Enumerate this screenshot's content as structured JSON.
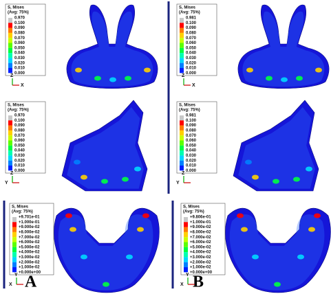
{
  "panels": [
    {
      "legend": {
        "title": "S, Mises",
        "subtitle": "(Avg: 75%)",
        "labels": [
          "0.970",
          "0.100",
          "0.090",
          "0.080",
          "0.070",
          "0.060",
          "0.050",
          "0.040",
          "0.030",
          "0.020",
          "0.010",
          "0.000"
        ]
      },
      "triad": [
        "Z",
        "X"
      ]
    },
    {
      "legend": {
        "title": "S, Mises",
        "subtitle": "(Avg: 75%)",
        "labels": [
          "0.981",
          "0.100",
          "0.090",
          "0.080",
          "0.070",
          "0.060",
          "0.050",
          "0.040",
          "0.030",
          "0.020",
          "0.010",
          "0.000"
        ]
      },
      "triad": [
        "Z",
        "X"
      ]
    },
    {
      "legend": {
        "title": "S, Mises",
        "subtitle": "(Avg: 75%)",
        "labels": [
          "0.970",
          "0.100",
          "0.090",
          "0.080",
          "0.070",
          "0.060",
          "0.050",
          "0.040",
          "0.030",
          "0.020",
          "0.010",
          "0.000"
        ]
      },
      "triad": [
        "Z",
        "Y"
      ]
    },
    {
      "legend": {
        "title": "S, Mises",
        "subtitle": "(Avg: 75%)",
        "labels": [
          "0.981",
          "0.100",
          "0.090",
          "0.080",
          "0.070",
          "0.060",
          "0.050",
          "0.040",
          "0.030",
          "0.020",
          "0.010",
          "0.000"
        ]
      },
      "triad": [
        "Z",
        "Y"
      ]
    },
    {
      "legend": {
        "title": "S, Mises",
        "subtitle": "(Avg: 75%)",
        "labels": [
          "+9.701e-01",
          "+1.000e-01",
          "+9.000e-02",
          "+8.000e-02",
          "+7.000e-02",
          "+6.000e-02",
          "+5.000e-02",
          "+4.000e-02",
          "+3.000e-02",
          "+2.000e-02",
          "+1.000e-02",
          "+0.000e+00"
        ]
      },
      "triad": [
        "Y",
        "X"
      ]
    },
    {
      "legend": {
        "title": "S, Mises",
        "subtitle": "(Avg: 75%)",
        "labels": [
          "+9.806e-01",
          "+1.000e-01",
          "+9.000e-02",
          "+8.000e-02",
          "+7.000e-02",
          "+6.000e-02",
          "+5.000e-02",
          "+4.000e-02",
          "+3.000e-02",
          "+2.000e-02",
          "+1.000e-02",
          "+0.000e+00"
        ]
      },
      "triad": [
        "Y",
        "X"
      ]
    }
  ],
  "panel_labels": [
    "A",
    "B"
  ]
}
